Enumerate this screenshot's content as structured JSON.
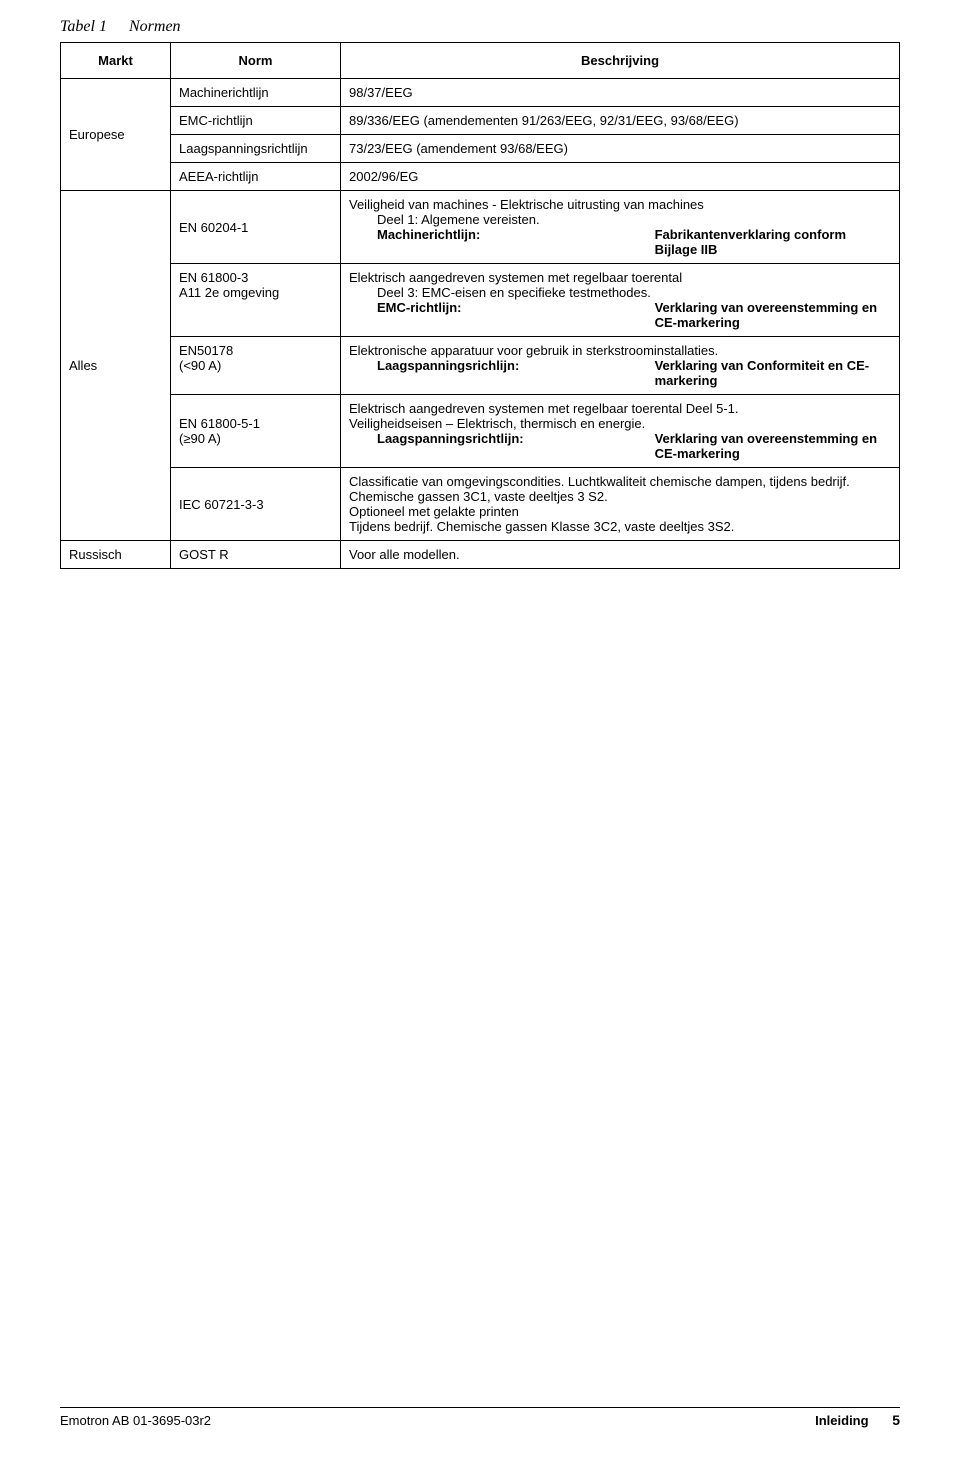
{
  "caption": {
    "label": "Tabel 1",
    "title": "Normen"
  },
  "headers": {
    "markt": "Markt",
    "norm": "Norm",
    "beschrijving": "Beschrijving"
  },
  "europese": {
    "markt": "Europese",
    "rows": [
      {
        "norm": "Machinerichtlijn",
        "desc": "98/37/EEG"
      },
      {
        "norm": "EMC-richtlijn",
        "desc": "89/336/EEG (amendementen 91/263/EEG, 92/31/EEG, 93/68/EEG)"
      },
      {
        "norm": "Laagspanningsrichtlijn",
        "desc": "73/23/EEG (amendement 93/68/EEG)"
      },
      {
        "norm": "AEEA-richtlijn",
        "desc": "2002/96/EG"
      }
    ]
  },
  "alles": {
    "markt": "Alles",
    "r1": {
      "norm": "EN 60204-1",
      "line1": "Veiligheid van machines - Elektrische uitrusting van machines",
      "line2": "Deel 1: Algemene vereisten.",
      "leftlabel": "Machinerichtlijn:",
      "right": "Fabrikantenverklaring conform Bijlage IIB"
    },
    "r2": {
      "norm": "EN 61800-3\nA11 2e omgeving",
      "line1": "Elektrisch aangedreven systemen met regelbaar toerental",
      "line2": "Deel 3: EMC-eisen en specifieke testmethodes.",
      "leftlabel": "EMC-richtlijn:",
      "right": "Verklaring van overeenstemming en CE-markering"
    },
    "r3": {
      "norm": "EN50178\n(<90 A)",
      "line1": "Elektronische apparatuur voor gebruik in sterkstroominstallaties.",
      "leftlabel": "Laagspanningsrichlijn:",
      "right": "Verklaring van Conformiteit en CE-markering"
    },
    "r4": {
      "norm": "EN 61800-5-1\n(≥90 A)",
      "line1": "Elektrisch aangedreven systemen met regelbaar toerental Deel 5-1.",
      "line2": "Veiligheidseisen – Elektrisch, thermisch en energie.",
      "leftlabel": "Laagspanningsrichtlijn:",
      "right": "Verklaring van overeenstemming en CE-markering"
    },
    "r5": {
      "norm": "IEC 60721-3-3",
      "line1": "Classificatie van omgevingscondities. Luchtkwaliteit chemische dampen, tijdens bedrijf. Chemische gassen 3C1, vaste deeltjes 3 S2.",
      "line2": "Optioneel met gelakte printen",
      "line3": "Tijdens bedrijf. Chemische gassen Klasse 3C2, vaste deeltjes 3S2."
    }
  },
  "russisch": {
    "markt": "Russisch",
    "norm": "GOST R",
    "desc": "Voor alle modellen."
  },
  "footer": {
    "left": "Emotron AB 01-3695-03r2",
    "section": "Inleiding",
    "page": "5"
  }
}
